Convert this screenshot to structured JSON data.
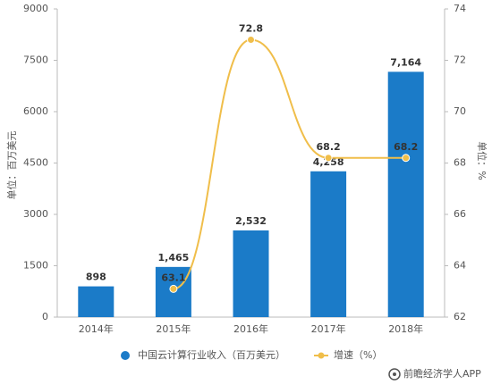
{
  "chart_data": {
    "type": "bar",
    "categories": [
      "2014年",
      "2015年",
      "2016年",
      "2017年",
      "2018年"
    ],
    "series": [
      {
        "name": "中国云计算行业收入（百万美元）",
        "type": "bar",
        "color": "#1b7bc8",
        "values": [
          898,
          1465,
          2532,
          4258,
          7164
        ],
        "value_labels": [
          "898",
          "1,465",
          "2,532",
          "4,258",
          "7,164"
        ]
      },
      {
        "name": "增速（%）",
        "type": "line",
        "axis": "y2",
        "color": "#f0be4a",
        "values": [
          null,
          63.1,
          72.8,
          68.2,
          68.2
        ]
      }
    ],
    "ylabel": "单位：百万美元",
    "y2label": "单位：%",
    "ylim": [
      0,
      9000
    ],
    "yticks": [
      0,
      1500,
      3000,
      4500,
      6000,
      7500,
      9000
    ],
    "y2lim": [
      62,
      74
    ],
    "y2ticks": [
      62,
      64,
      66,
      68,
      70,
      72,
      74
    ],
    "grid": false,
    "legend": "bottom",
    "source": "前瞻经济学人APP"
  }
}
